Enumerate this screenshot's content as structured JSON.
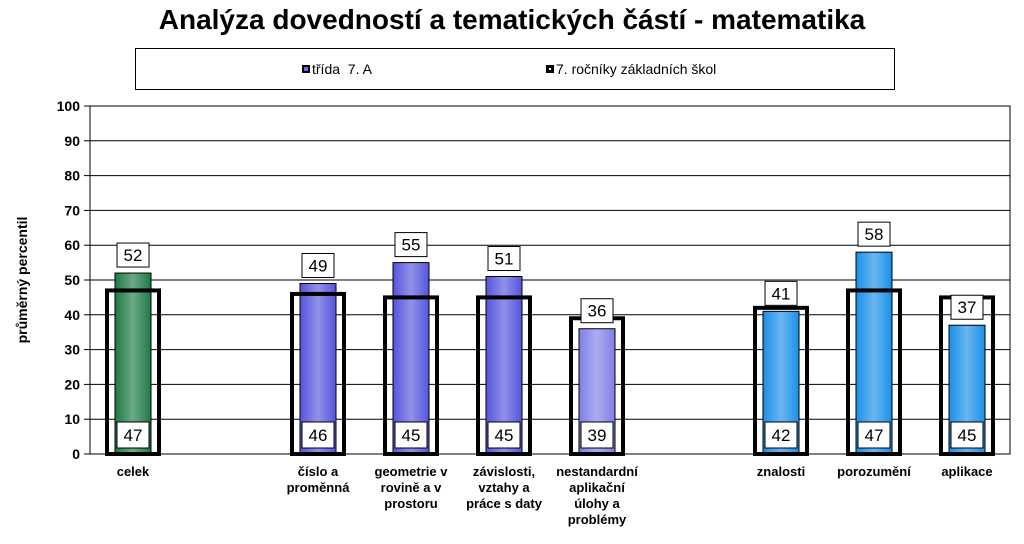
{
  "chart_data": {
    "type": "bar",
    "title": "Analýza dovedností a tematických částí - matematika",
    "ylabel": "průměrný percentil",
    "xlabel": "",
    "ylim": [
      0,
      100
    ],
    "yticks": [
      0,
      10,
      20,
      30,
      40,
      50,
      60,
      70,
      80,
      90,
      100
    ],
    "grid": true,
    "legend_position": "top",
    "categories": [
      "celek",
      "číslo a proměnná",
      "geometrie v rovině a v prostoru",
      "závislosti, vztahy a práce s daty",
      "nestandardní aplikační úlohy a problémy",
      "znalosti",
      "porozumění",
      "aplikace"
    ],
    "category_lines": [
      [
        "celek"
      ],
      [
        "číslo a",
        "proměnná"
      ],
      [
        "geometrie v",
        "rovině a v",
        "prostoru"
      ],
      [
        "závislosti,",
        "vztahy a",
        "práce s daty"
      ],
      [
        "nestandardní",
        "aplikační",
        "úlohy a",
        "problémy"
      ],
      [
        "znalosti"
      ],
      [
        "porozumění"
      ],
      [
        "aplikace"
      ]
    ],
    "series": [
      {
        "name": "třída  7. A",
        "values": [
          52,
          49,
          55,
          51,
          36,
          41,
          58,
          37
        ],
        "colors": [
          "#1e7a45",
          "#5555dd",
          "#5555dd",
          "#5555dd",
          "#7f7fe6",
          "#1a8fe8",
          "#1a8fe8",
          "#1a8fe8"
        ]
      },
      {
        "name": "7. ročníky základních škol",
        "values": [
          47,
          46,
          45,
          45,
          39,
          42,
          47,
          45
        ],
        "colors": [
          "#000000",
          "#000000",
          "#000000",
          "#000000",
          "#000000",
          "#000000",
          "#000000",
          "#000000"
        ]
      }
    ]
  }
}
